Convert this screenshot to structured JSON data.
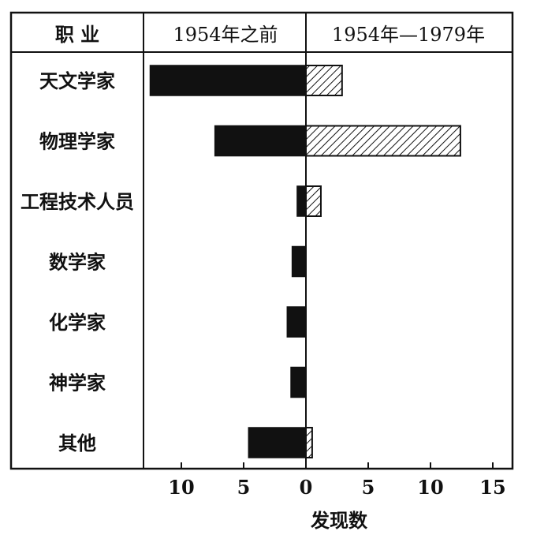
{
  "chart_data": {
    "type": "bar",
    "orientation": "horizontal",
    "title": "",
    "header": {
      "category_column": "职    业",
      "left_series": "1954年之前",
      "right_series": "1954年—1979年"
    },
    "categories": [
      "天文学家",
      "物理学家",
      "工程技术人员",
      "数学家",
      "化学家",
      "神学家",
      "其他"
    ],
    "series": [
      {
        "name": "1954年之前",
        "direction": "left",
        "fill": "solid",
        "values": [
          12.5,
          7.3,
          0.7,
          1.1,
          1.5,
          1.2,
          4.6
        ]
      },
      {
        "name": "1954年—1979年",
        "direction": "right",
        "fill": "hatched",
        "values": [
          2.9,
          12.4,
          1.2,
          0,
          0,
          0,
          0.5
        ]
      }
    ],
    "xticks": [
      {
        "label": "10",
        "value": -10
      },
      {
        "label": "5",
        "value": -5
      },
      {
        "label": "0",
        "value": 0
      },
      {
        "label": "5",
        "value": 5
      },
      {
        "label": "10",
        "value": 10
      },
      {
        "label": "15",
        "value": 15
      }
    ],
    "xlim": [
      -13,
      16
    ],
    "xlabel": "发现数",
    "ylabel": "",
    "grid": false,
    "colors": {
      "solid": "#111111",
      "hatch": "#111111",
      "frame": "#111111"
    }
  }
}
